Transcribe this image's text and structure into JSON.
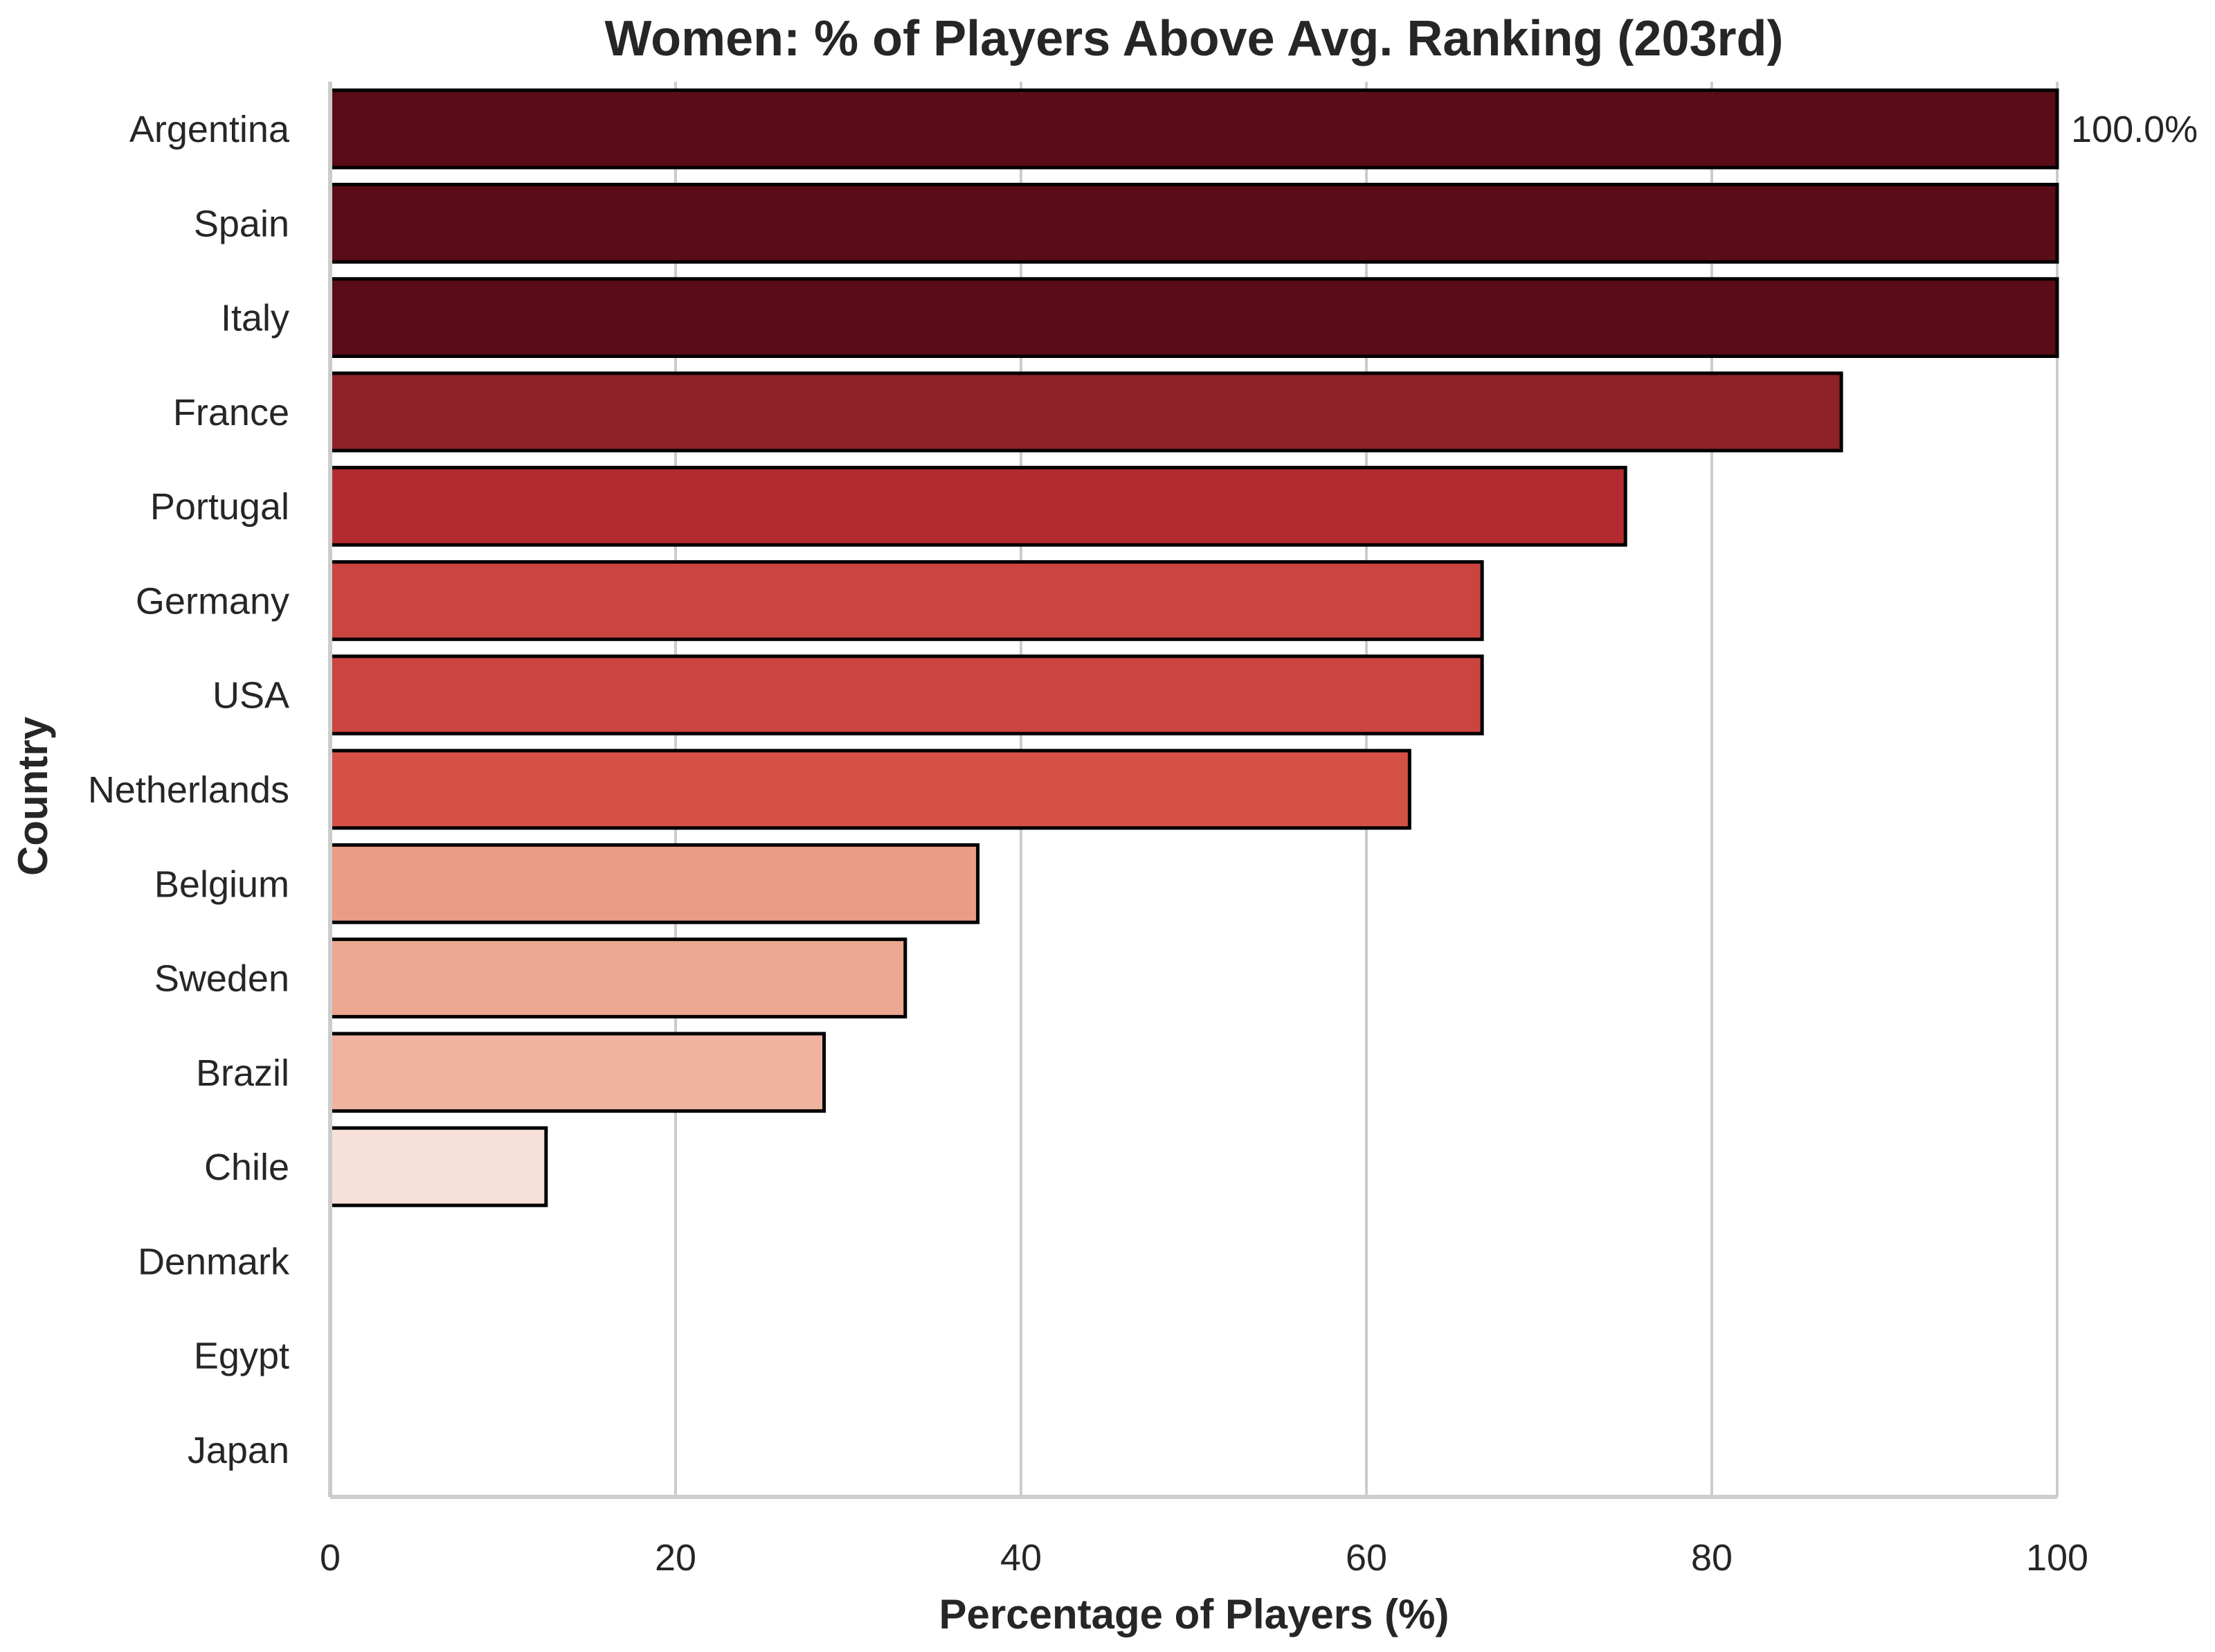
{
  "chart_data": {
    "type": "bar",
    "orientation": "horizontal",
    "title": "Women: % of Players Above Avg. Ranking (203rd)",
    "xlabel": "Percentage of Players (%)",
    "ylabel": "Country",
    "xlim": [
      0,
      100
    ],
    "xticks": [
      0,
      20,
      40,
      60,
      80,
      100
    ],
    "xtick_labels": [
      "0",
      "20",
      "40",
      "60",
      "80",
      "100"
    ],
    "grid": "vertical",
    "categories": [
      "Argentina",
      "Spain",
      "Italy",
      "France",
      "Portugal",
      "Germany",
      "USA",
      "Netherlands",
      "Belgium",
      "Sweden",
      "Brazil",
      "Chile",
      "Denmark",
      "Egypt",
      "Japan"
    ],
    "values": [
      100,
      100,
      100,
      87.5,
      75,
      66.7,
      66.7,
      62.5,
      37.5,
      33.3,
      28.6,
      12.5,
      0,
      0,
      0
    ],
    "colors": [
      "#5a0c17",
      "#5a0c17",
      "#5a0c17",
      "#8e2028",
      "#b32a30",
      "#cb4440",
      "#cb4440",
      "#d55146",
      "#ea9c84",
      "#eca890",
      "#efb39f",
      "#f6e0d7",
      "#ffffff",
      "#ffffff",
      "#ffffff"
    ],
    "annotations": [
      {
        "category": "Argentina",
        "text": "100.0%"
      }
    ]
  }
}
